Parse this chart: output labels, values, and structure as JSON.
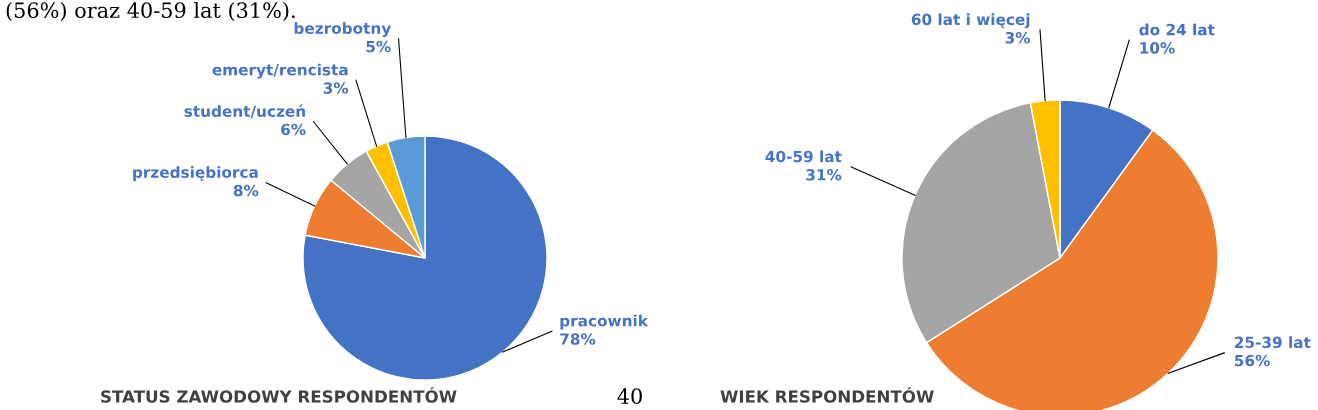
{
  "chart_data": [
    {
      "type": "pie",
      "title": "STATUS ZAWODOWY RESPONDENTÓW",
      "categories": [
        "pracownik",
        "przedsiębiorca",
        "student/uczeń",
        "emeryt/rencista",
        "bezrobotny"
      ],
      "values": [
        78,
        8,
        6,
        3,
        5
      ],
      "value_labels": [
        "78%",
        "8%",
        "6%",
        "3%",
        "5%"
      ],
      "colors": [
        "#4472c4",
        "#ed7d31",
        "#a5a5a5",
        "#ffc000",
        "#5b9bd5"
      ],
      "legend": false,
      "annotations": [
        "(56%) oraz 40-59 lat (31%).",
        "40"
      ]
    },
    {
      "type": "pie",
      "title": "WIEK RESPONDENTÓW",
      "categories": [
        "do 24 lat",
        "25-39 lat",
        "40-59 lat",
        "60 lat i więcej"
      ],
      "values": [
        10,
        56,
        31,
        3
      ],
      "value_labels": [
        "10%",
        "56%",
        "31%",
        "3%"
      ],
      "colors": [
        "#4472c4",
        "#ed7d31",
        "#a5a5a5",
        "#ffc000"
      ],
      "legend": false
    }
  ]
}
